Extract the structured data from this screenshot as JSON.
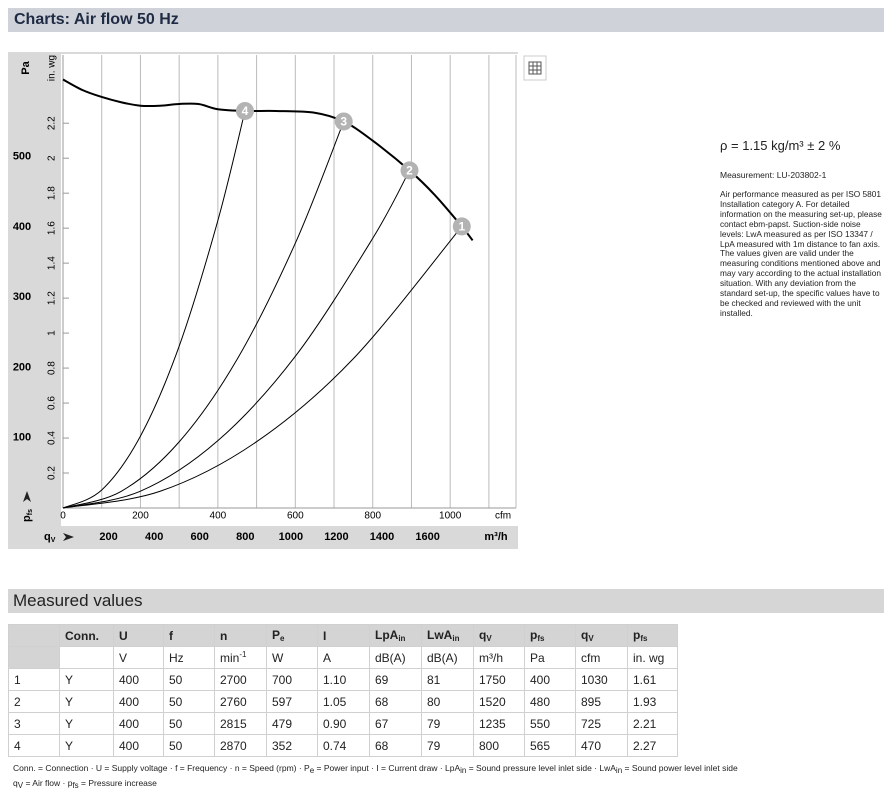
{
  "header": {
    "title": "Charts: Air flow 50 Hz"
  },
  "chart_data": {
    "type": "line",
    "xlabel": "cfm",
    "ylabel": "in. wg",
    "y2label": "Pa",
    "x2label": "m³/h",
    "x_quantity": {
      "text": "q",
      "sub": "V"
    },
    "y_quantity": {
      "text": "p",
      "sub": "fs"
    },
    "xlim": [
      0,
      1170
    ],
    "xticks": [
      0,
      200,
      400,
      600,
      800,
      1000
    ],
    "xgrid_minor": [
      100,
      300,
      500,
      700,
      900,
      1100
    ],
    "x2lim": [
      0,
      1988
    ],
    "x2ticks": [
      200,
      400,
      600,
      800,
      1000,
      1200,
      1400,
      1600
    ],
    "ylim": [
      0,
      2.59
    ],
    "yticks": [
      0.2,
      0.4,
      0.6,
      0.8,
      1,
      1.2,
      1.4,
      1.6,
      1.8,
      2,
      2.2
    ],
    "y2lim": [
      0,
      645
    ],
    "y2ticks": [
      100,
      200,
      300,
      400,
      500
    ],
    "series": [
      {
        "color": "#000000",
        "x": [
          0,
          50,
          100,
          150,
          200,
          250,
          300,
          350,
          400,
          470,
          550,
          650,
          725,
          800,
          895,
          960,
          1030,
          1058
        ],
        "values": [
          2.45,
          2.39,
          2.35,
          2.32,
          2.3,
          2.3,
          2.31,
          2.31,
          2.28,
          2.27,
          2.27,
          2.26,
          2.21,
          2.1,
          1.93,
          1.79,
          1.61,
          1.53
        ]
      },
      {
        "color": "#000000",
        "x": [
          0,
          100,
          200,
          300,
          400,
          470
        ],
        "values": [
          0,
          0.103,
          0.411,
          0.925,
          1.644,
          2.27
        ]
      },
      {
        "color": "#000000",
        "x": [
          0,
          150,
          300,
          450,
          600,
          725
        ],
        "values": [
          0,
          0.095,
          0.378,
          0.851,
          1.514,
          2.21
        ]
      },
      {
        "color": "#000000",
        "x": [
          0,
          200,
          400,
          600,
          800,
          895
        ],
        "values": [
          0,
          0.096,
          0.385,
          0.867,
          1.542,
          1.93
        ]
      },
      {
        "color": "#000000",
        "x": [
          0,
          250,
          500,
          750,
          1030
        ],
        "values": [
          0,
          0.095,
          0.379,
          0.854,
          1.61
        ]
      }
    ],
    "points": [
      {
        "label": "1",
        "x": 1030,
        "y": 1.61
      },
      {
        "label": "2",
        "x": 895,
        "y": 1.93
      },
      {
        "label": "3",
        "x": 725,
        "y": 2.21
      },
      {
        "label": "4",
        "x": 470,
        "y": 2.27
      }
    ]
  },
  "notes": {
    "density": "ρ = 1.15 kg/m³ ± 2 %",
    "measurement": "Measurement: LU-203802-1",
    "description": [
      "Air performance measured as per ISO 5801",
      "Installation category A. For detailed",
      "information on the measuring set-up, please",
      "contact ebm-papst. Suction-side noise",
      "levels: LwA measured as per ISO 13347 /",
      "LpA measured with 1m distance to fan axis.",
      "The values given are valid under the",
      "measuring conditions mentioned above and",
      "may vary according to the actual installation",
      "situation. With any deviation from the",
      "standard set-up, the specific values have to",
      "be checked and reviewed with the unit",
      "installed."
    ]
  },
  "table": {
    "title": "Measured values",
    "header": [
      null,
      "Conn.",
      "U",
      "f",
      "n",
      {
        "text": "P",
        "sub": "e"
      },
      "I",
      {
        "text": "LpA",
        "sub": "in"
      },
      {
        "text": "LwA",
        "sub": "in"
      },
      {
        "text": "q",
        "sub": "V"
      },
      {
        "text": "p",
        "sub": "fs"
      },
      {
        "text": "q",
        "sub": "V"
      },
      {
        "text": "p",
        "sub": "fs"
      }
    ],
    "units": [
      null,
      null,
      "V",
      "Hz",
      {
        "text": "min",
        "sup": "-1"
      },
      "W",
      "A",
      "dB(A)",
      "dB(A)",
      "m³/h",
      "Pa",
      "cfm",
      "in. wg"
    ],
    "rows": [
      [
        "1",
        "Y",
        "400",
        "50",
        "2700",
        "700",
        "1.10",
        "69",
        "81",
        "1750",
        "400",
        "1030",
        "1.61"
      ],
      [
        "2",
        "Y",
        "400",
        "50",
        "2760",
        "597",
        "1.05",
        "68",
        "80",
        "1520",
        "480",
        "895",
        "1.93"
      ],
      [
        "3",
        "Y",
        "400",
        "50",
        "2815",
        "479",
        "0.90",
        "67",
        "79",
        "1235",
        "550",
        "725",
        "2.21"
      ],
      [
        "4",
        "Y",
        "400",
        "50",
        "2870",
        "352",
        "0.74",
        "68",
        "79",
        "800",
        "565",
        "470",
        "2.27"
      ]
    ],
    "footnotes": [
      [
        {
          "text": "Conn. = Connection · U = Supply voltage · f = Frequency · n = Speed (rpm) · P"
        },
        {
          "sub": "e"
        },
        {
          "text": " = Power input · I = Current draw · LpA"
        },
        {
          "sub": "in"
        },
        {
          "text": " = Sound pressure level inlet side · LwA"
        },
        {
          "sub": "in"
        },
        {
          "text": " = Sound power level inlet side"
        }
      ],
      [
        {
          "text": "q"
        },
        {
          "sub": "V"
        },
        {
          "text": " = Air flow · p"
        },
        {
          "sub": "fs"
        },
        {
          "text": " = Pressure increase"
        }
      ]
    ]
  }
}
